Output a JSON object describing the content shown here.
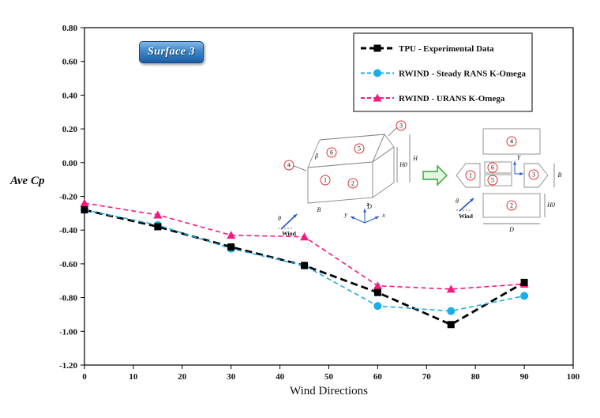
{
  "badge": {
    "label": "Surface 3"
  },
  "axes": {
    "xlabel": "Wind Directions",
    "ylabel": "Ave Cp"
  },
  "chart_data": {
    "type": "line",
    "title": "Surface 3",
    "xlabel": "Wind Directions",
    "ylabel": "Ave Cp",
    "x": [
      0,
      15,
      30,
      45,
      60,
      75,
      90
    ],
    "series": [
      {
        "name": "TPU - Experimental Data",
        "color": "#000000",
        "marker": "square",
        "dash": "9 5",
        "width": 2.8,
        "values": [
          -0.28,
          -0.38,
          -0.5,
          -0.61,
          -0.77,
          -0.96,
          -0.71
        ]
      },
      {
        "name": "RWIND - Steady RANS K-Omega",
        "color": "#1cа",
        "marker": "circle",
        "dash": "6 4",
        "width": 1.6,
        "values": [
          -0.28,
          -0.37,
          -0.51,
          -0.61,
          -0.85,
          -0.88,
          -0.79
        ]
      },
      {
        "name": "RWIND - URANS K-Omega",
        "color": "#f5197e",
        "marker": "triangle",
        "dash": "6 4",
        "width": 1.6,
        "values": [
          -0.24,
          -0.31,
          -0.43,
          -0.44,
          -0.73,
          -0.75,
          -0.72
        ]
      }
    ],
    "series_colors": [
      "#000000",
      "#1badе6",
      "#f5197e"
    ],
    "xlim": [
      0,
      100
    ],
    "ylim": [
      -1.2,
      0.8
    ],
    "x_ticks": [
      "0",
      "10",
      "20",
      "30",
      "40",
      "50",
      "60",
      "70",
      "80",
      "90",
      "100"
    ],
    "y_ticks": [
      "0.80",
      "0.60",
      "0.40",
      "0.20",
      "0.00",
      "-0.20",
      "-0.40",
      "-0.60",
      "-0.80",
      "-1.00",
      "-1.20"
    ],
    "grid": false,
    "legend_position": "top-right"
  },
  "inset": {
    "surface_numbers": [
      "1",
      "2",
      "3",
      "4",
      "5",
      "6"
    ],
    "dims": {
      "h0": "H0",
      "h": "H",
      "b": "B",
      "d": "D"
    },
    "wind_label": "Wind",
    "theta": "θ",
    "beta": "β",
    "axis_labels": {
      "x": "x",
      "y": "y",
      "z": "z",
      "Y": "Y",
      "X": "X"
    }
  }
}
